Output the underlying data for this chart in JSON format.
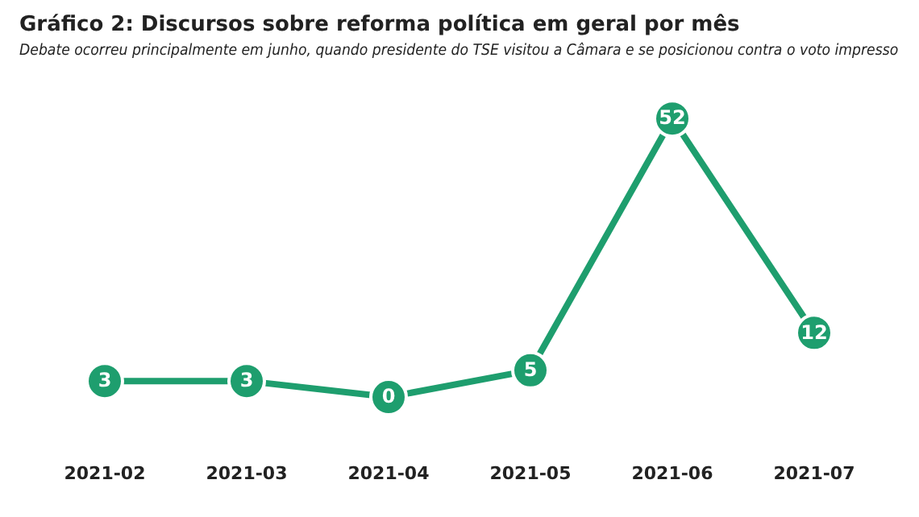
{
  "chart_data": {
    "type": "line",
    "title": "Gráfico 2: Discursos sobre reforma política em geral por mês",
    "subtitle": "Debate ocorreu principalmente em junho, quando presidente do TSE visitou a Câmara e se posicionou contra o voto impresso",
    "categories": [
      "2021-02",
      "2021-03",
      "2021-04",
      "2021-05",
      "2021-06",
      "2021-07"
    ],
    "series": [
      {
        "color": "#1e9e6e",
        "values": [
          3,
          3,
          0,
          5,
          52,
          12
        ]
      }
    ],
    "data_labels": true,
    "marker": "circle",
    "line_style": "solid",
    "grid": false,
    "legend": false
  }
}
